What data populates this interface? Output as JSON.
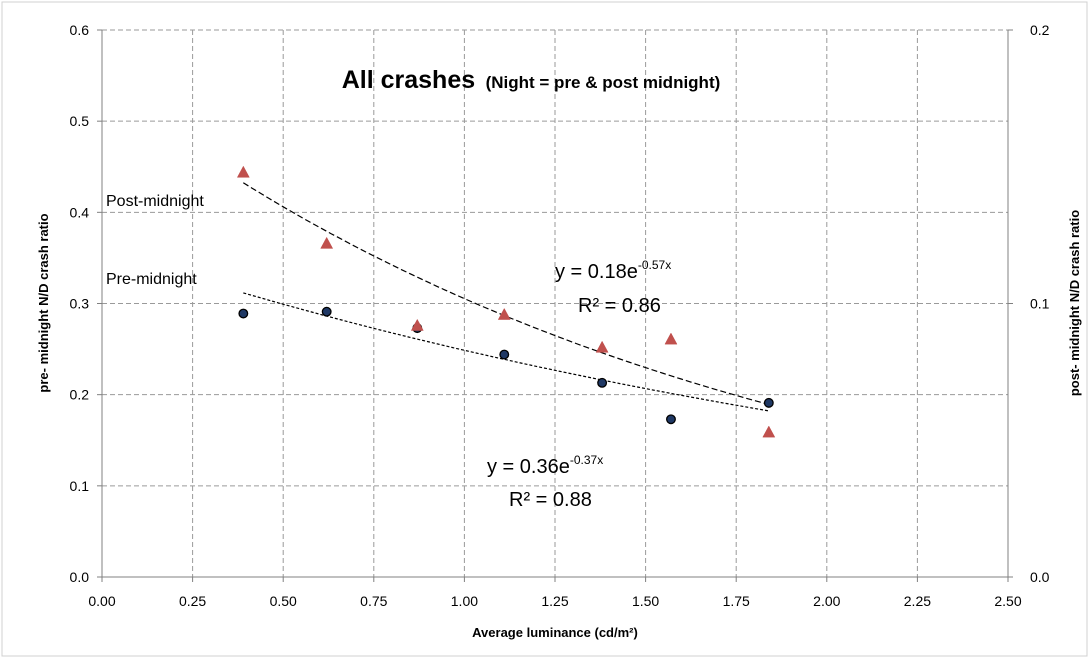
{
  "chart_data": {
    "type": "scatter",
    "title": "All crashes",
    "subtitle": "(Night = pre & post midnight)",
    "xlabel": "Average luminance  (cd/m²)",
    "ylabel_left": "pre- midnight  N/D crash ratio",
    "ylabel_right": "post- midnight  N/D crash ratio",
    "xlim": [
      0,
      2.5
    ],
    "ylim_left": [
      0,
      0.6
    ],
    "ylim_right": [
      0,
      0.2
    ],
    "x_ticks": [
      "0.00",
      "0.25",
      "0.50",
      "0.75",
      "1.00",
      "1.25",
      "1.50",
      "1.75",
      "2.00",
      "2.25",
      "2.50"
    ],
    "y_left_ticks": [
      "0.0",
      "0.1",
      "0.2",
      "0.3",
      "0.4",
      "0.5",
      "0.6"
    ],
    "y_right_ticks": [
      "0.0",
      "0.1",
      "0.2"
    ],
    "grid": true,
    "series": [
      {
        "label": "Pre-midnight",
        "axis": "left",
        "marker": "circle",
        "color": "#1f3864",
        "x": [
          0.39,
          0.62,
          0.87,
          1.11,
          1.38,
          1.57,
          1.84
        ],
        "y": [
          0.289,
          0.291,
          0.273,
          0.244,
          0.213,
          0.173,
          0.191
        ],
        "trendline": {
          "a": 0.36,
          "b": -0.37,
          "equation": "y = 0.36e",
          "exponent": "-0.37x",
          "r2": "R² = 0.88"
        }
      },
      {
        "label": "Post-midnight",
        "axis": "right",
        "marker": "triangle",
        "color": "#c0504d",
        "x": [
          0.39,
          0.62,
          0.87,
          1.11,
          1.38,
          1.57,
          1.84
        ],
        "y": [
          0.148,
          0.122,
          0.092,
          0.096,
          0.084,
          0.087,
          0.053
        ],
        "trendline": {
          "a": 0.18,
          "b": -0.57,
          "equation": "y = 0.18e",
          "exponent": "-0.57x",
          "r2": "R² = 0.86"
        }
      }
    ]
  }
}
